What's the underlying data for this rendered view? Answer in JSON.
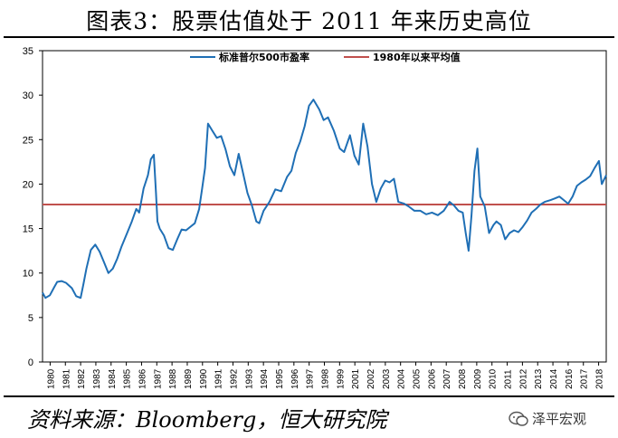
{
  "title": "图表3：股票估值处于 2011 年来历史高位",
  "source": "资料来源：Bloomberg，恒大研究院",
  "watermark": "泽平宏观",
  "colors": {
    "pe": "#1f6fb5",
    "avg": "#c0504d",
    "axis": "#000000"
  },
  "chart_data": {
    "type": "line",
    "title": "",
    "xlabel": "",
    "ylabel": "",
    "ylim": [
      0,
      35
    ],
    "yticks": [
      0,
      5,
      10,
      15,
      20,
      25,
      30,
      35
    ],
    "xlim": [
      1980,
      2018.5
    ],
    "xticks": [
      "1980",
      "1981",
      "1982",
      "1983",
      "1984",
      "1985",
      "1986",
      "1987",
      "1988",
      "1989",
      "1990",
      "1991",
      "1992",
      "1993",
      "1994",
      "1995",
      "1996",
      "1997",
      "1998",
      "1999",
      "2001",
      "2002",
      "2003",
      "2004",
      "2005",
      "2006",
      "2007",
      "2008",
      "2009",
      "2010",
      "2011",
      "2012",
      "2013",
      "2014",
      "2016",
      "2017",
      "2018"
    ],
    "legend": "top-center",
    "series": [
      {
        "name": "标准普尔500市盈率",
        "x": [
          1980.0,
          1980.2,
          1980.5,
          1980.8,
          1981.0,
          1981.3,
          1981.6,
          1982.0,
          1982.3,
          1982.6,
          1982.8,
          1983.0,
          1983.3,
          1983.6,
          1983.9,
          1984.2,
          1984.5,
          1984.8,
          1985.1,
          1985.4,
          1985.8,
          1986.1,
          1986.4,
          1986.6,
          1986.9,
          1987.2,
          1987.4,
          1987.6,
          1987.75,
          1987.85,
          1988.0,
          1988.3,
          1988.6,
          1988.9,
          1989.2,
          1989.5,
          1989.8,
          1990.1,
          1990.4,
          1990.7,
          1990.9,
          1991.1,
          1991.3,
          1991.6,
          1991.9,
          1992.2,
          1992.5,
          1992.8,
          1993.1,
          1993.4,
          1993.7,
          1994.0,
          1994.3,
          1994.6,
          1994.8,
          1995.1,
          1995.5,
          1995.9,
          1996.3,
          1996.7,
          1997.0,
          1997.3,
          1997.6,
          1997.9,
          1998.2,
          1998.5,
          1998.9,
          1999.2,
          1999.5,
          1999.9,
          2000.3,
          2000.6,
          2001.0,
          2001.3,
          2001.6,
          2001.9,
          2002.2,
          2002.5,
          2002.8,
          2003.1,
          2003.4,
          2003.7,
          2004.0,
          2004.3,
          2004.7,
          2005.0,
          2005.4,
          2005.8,
          2006.2,
          2006.6,
          2007.0,
          2007.4,
          2007.8,
          2008.1,
          2008.4,
          2008.7,
          2008.9,
          2009.1,
          2009.3,
          2009.5,
          2009.7,
          2009.9,
          2010.2,
          2010.5,
          2010.8,
          2011.0,
          2011.3,
          2011.6,
          2011.9,
          2012.2,
          2012.5,
          2012.8,
          2013.1,
          2013.4,
          2013.7,
          2014.0,
          2014.3,
          2014.7,
          2015.0,
          2015.3,
          2015.6,
          2015.9,
          2016.2,
          2016.5,
          2016.8,
          2017.1,
          2017.4,
          2017.7,
          2018.0,
          2018.2,
          2018.5
        ],
        "values": [
          7.8,
          7.2,
          7.5,
          8.4,
          9.0,
          9.1,
          8.9,
          8.3,
          7.4,
          7.2,
          8.8,
          10.5,
          12.6,
          13.2,
          12.4,
          11.2,
          10.0,
          10.5,
          11.6,
          13.0,
          14.6,
          15.8,
          17.2,
          16.8,
          19.5,
          21.0,
          22.8,
          23.3,
          19.0,
          15.8,
          15.0,
          14.2,
          12.8,
          12.6,
          13.8,
          14.9,
          14.8,
          15.2,
          15.6,
          17.2,
          19.5,
          21.8,
          26.8,
          26.0,
          25.2,
          25.4,
          23.9,
          22.0,
          21.0,
          23.4,
          21.2,
          19.0,
          17.6,
          15.8,
          15.6,
          17.0,
          18.0,
          19.4,
          19.2,
          20.8,
          21.5,
          23.5,
          24.8,
          26.5,
          28.8,
          29.5,
          28.4,
          27.2,
          27.5,
          26.0,
          24.0,
          23.6,
          25.5,
          23.2,
          22.2,
          26.8,
          24.2,
          20.0,
          18.0,
          19.5,
          20.4,
          20.2,
          20.6,
          18.0,
          17.8,
          17.5,
          17.0,
          17.0,
          16.6,
          16.8,
          16.5,
          17.0,
          18.0,
          17.6,
          17.0,
          16.8,
          14.5,
          12.5,
          16.5,
          21.5,
          24.0,
          18.6,
          17.5,
          14.5,
          15.4,
          15.8,
          15.4,
          13.8,
          14.5,
          14.8,
          14.6,
          15.2,
          15.9,
          16.8,
          17.2,
          17.7,
          18.0,
          18.2,
          18.4,
          18.6,
          18.2,
          17.8,
          18.6,
          19.8,
          20.2,
          20.5,
          20.9,
          21.8,
          22.6,
          20.0,
          21.0
        ]
      },
      {
        "name": "1980年以来平均值",
        "x": [
          1980,
          2018.5
        ],
        "values": [
          17.7,
          17.7
        ]
      }
    ]
  }
}
